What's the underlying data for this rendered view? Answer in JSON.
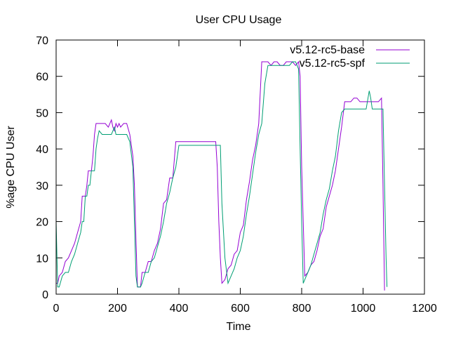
{
  "colors": {
    "base": "#9400d3",
    "spf": "#009e73",
    "axis": "#000000"
  },
  "chart_data": {
    "type": "line",
    "title": "User CPU Usage",
    "xlabel": "Time",
    "ylabel": "%age CPU User",
    "xlim": [
      0,
      1200
    ],
    "ylim": [
      0,
      70
    ],
    "xticks": [
      0,
      200,
      400,
      600,
      800,
      1000,
      1200
    ],
    "yticks": [
      0,
      10,
      20,
      30,
      40,
      50,
      60,
      70
    ],
    "grid": false,
    "legend_position": "top-right",
    "series": [
      {
        "name": "v5.12-rc5-base",
        "color": "#9400d3",
        "x": [
          0,
          5,
          10,
          20,
          30,
          40,
          50,
          60,
          70,
          80,
          85,
          90,
          95,
          100,
          105,
          110,
          115,
          120,
          125,
          130,
          135,
          140,
          150,
          160,
          170,
          175,
          180,
          185,
          190,
          195,
          200,
          205,
          210,
          220,
          230,
          240,
          250,
          255,
          260,
          265,
          270,
          275,
          280,
          290,
          300,
          310,
          320,
          330,
          340,
          350,
          360,
          370,
          380,
          390,
          400,
          410,
          420,
          440,
          460,
          480,
          500,
          510,
          520,
          525,
          530,
          535,
          540,
          550,
          560,
          570,
          580,
          590,
          600,
          610,
          620,
          630,
          640,
          650,
          660,
          670,
          680,
          690,
          700,
          710,
          720,
          730,
          740,
          750,
          760,
          770,
          780,
          790,
          795,
          800,
          805,
          810,
          820,
          830,
          840,
          850,
          860,
          870,
          880,
          890,
          900,
          910,
          920,
          930,
          940,
          950,
          960,
          970,
          980,
          990,
          1000,
          1010,
          1020,
          1030,
          1040,
          1050,
          1060,
          1065,
          1070
        ],
        "y": [
          3,
          3,
          5,
          6,
          9,
          10,
          12,
          14,
          17,
          20,
          27,
          27,
          27,
          30,
          34,
          34,
          34,
          38,
          44,
          47,
          47,
          47,
          47,
          47,
          46,
          47,
          48,
          46,
          45,
          47,
          46,
          47,
          46,
          47,
          47,
          44,
          38,
          30,
          15,
          2,
          2,
          2,
          6,
          6,
          9,
          9,
          12,
          14,
          18,
          25,
          26,
          32,
          32,
          42,
          42,
          42,
          42,
          42,
          42,
          42,
          42,
          42,
          42,
          35,
          20,
          10,
          3,
          4,
          7,
          8,
          11,
          12,
          17,
          19,
          26,
          31,
          37,
          41,
          47,
          64,
          64,
          64,
          63,
          64,
          64,
          63,
          63,
          64,
          64,
          64,
          63,
          64,
          60,
          35,
          20,
          5,
          6,
          8,
          9,
          12,
          16,
          18,
          24,
          27,
          30,
          34,
          40,
          46,
          53,
          53,
          53,
          54,
          54,
          53,
          53,
          53,
          53,
          53,
          53,
          53,
          54,
          30,
          1
        ]
      },
      {
        "name": "v5.12-rc5-spf",
        "color": "#009e73",
        "x": [
          0,
          5,
          10,
          20,
          30,
          40,
          50,
          60,
          70,
          80,
          85,
          90,
          95,
          100,
          105,
          110,
          115,
          120,
          125,
          130,
          135,
          140,
          150,
          160,
          170,
          180,
          190,
          195,
          200,
          205,
          210,
          220,
          230,
          240,
          250,
          255,
          260,
          265,
          270,
          275,
          280,
          290,
          300,
          310,
          320,
          330,
          340,
          350,
          360,
          370,
          380,
          390,
          400,
          410,
          420,
          440,
          460,
          480,
          500,
          510,
          520,
          530,
          535,
          540,
          550,
          560,
          570,
          580,
          590,
          600,
          610,
          620,
          630,
          640,
          650,
          660,
          670,
          680,
          690,
          700,
          710,
          720,
          730,
          740,
          750,
          760,
          770,
          780,
          790,
          795,
          800,
          805,
          810,
          820,
          830,
          840,
          850,
          860,
          870,
          880,
          890,
          900,
          910,
          920,
          930,
          940,
          950,
          960,
          970,
          980,
          990,
          1000,
          1010,
          1020,
          1025,
          1030,
          1040,
          1050,
          1060,
          1065,
          1070,
          1075,
          1078
        ],
        "y": [
          20,
          2,
          2,
          5,
          6,
          6,
          9,
          11,
          14,
          17,
          20,
          20,
          27,
          27,
          30,
          30,
          34,
          34,
          34,
          40,
          43,
          45,
          44,
          44,
          44,
          44,
          46,
          44,
          44,
          44,
          44,
          44,
          44,
          42,
          35,
          20,
          5,
          2,
          2,
          2,
          3,
          6,
          6,
          9,
          10,
          13,
          16,
          20,
          25,
          28,
          32,
          35,
          41,
          41,
          41,
          41,
          41,
          41,
          41,
          41,
          41,
          41,
          41,
          25,
          10,
          3,
          5,
          7,
          10,
          12,
          16,
          22,
          27,
          33,
          39,
          44,
          47,
          58,
          63,
          63,
          63,
          63,
          63,
          63,
          63,
          63,
          64,
          64,
          62,
          40,
          20,
          3,
          4,
          6,
          8,
          11,
          14,
          17,
          22,
          26,
          29,
          34,
          38,
          45,
          50,
          51,
          51,
          51,
          51,
          51,
          51,
          51,
          51,
          56,
          54,
          51,
          51,
          51,
          51,
          51,
          30,
          10,
          2
        ]
      }
    ]
  }
}
